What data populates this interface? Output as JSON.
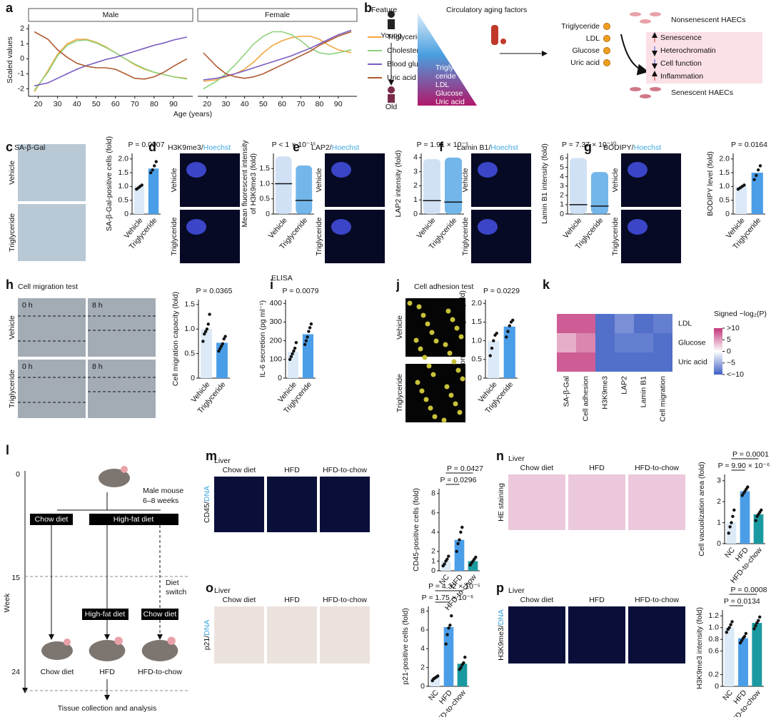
{
  "chart_data": [
    {
      "type": "line",
      "ylabel": "Scaled values",
      "xlabel": "Age (years)",
      "legend_title": "Feature",
      "x": [
        18,
        25,
        30,
        35,
        40,
        45,
        50,
        55,
        60,
        65,
        70,
        75,
        80,
        85,
        90,
        97
      ],
      "xlim": [
        15,
        100
      ],
      "xticks": [
        20,
        30,
        40,
        50,
        60,
        70,
        80,
        90
      ],
      "ylim": [
        -2.5,
        2.3
      ],
      "yticks": [
        -2,
        -1,
        0,
        1,
        2
      ],
      "series": [
        {
          "name": "Triglycerides",
          "color": "#f5a742"
        },
        {
          "name": "Cholesterol",
          "color": "#8fd17a"
        },
        {
          "name": "Blood glucose",
          "color": "#7a5cc0"
        },
        {
          "name": "Uric acid",
          "color": "#b05a30"
        }
      ],
      "facets": [
        {
          "title": "Male",
          "values": [
            [
              -2.2,
              -0.8,
              0.3,
              1.0,
              1.3,
              1.3,
              1.1,
              0.8,
              0.4,
              0.0,
              -0.4,
              -0.7,
              -0.9,
              -1.05,
              -1.2,
              -1.3
            ],
            [
              -2.1,
              -0.9,
              0.2,
              0.9,
              1.2,
              1.25,
              1.05,
              0.75,
              0.4,
              0.0,
              -0.35,
              -0.65,
              -0.9,
              -1.05,
              -1.2,
              -1.35
            ],
            [
              -1.8,
              -1.6,
              -1.3,
              -1.0,
              -0.7,
              -0.45,
              -0.25,
              -0.05,
              0.1,
              0.3,
              0.5,
              0.7,
              0.9,
              1.05,
              1.25,
              1.45
            ],
            [
              1.8,
              1.3,
              0.6,
              0.1,
              -0.3,
              -0.5,
              -0.6,
              -0.6,
              -0.7,
              -1.0,
              -1.3,
              -1.35,
              -1.2,
              -0.9,
              -0.5,
              0.0
            ]
          ]
        },
        {
          "title": "Female",
          "values": [
            [
              -1.5,
              -1.4,
              -1.2,
              -1.0,
              -0.7,
              -0.2,
              0.4,
              0.9,
              1.2,
              1.4,
              1.5,
              1.5,
              1.3,
              0.9,
              0.6,
              0.4
            ],
            [
              -2.0,
              -1.5,
              -1.0,
              -0.4,
              0.3,
              1.0,
              1.5,
              1.8,
              1.8,
              1.6,
              1.2,
              0.7,
              0.4,
              0.3,
              0.4,
              0.6
            ],
            [
              -1.4,
              -1.3,
              -1.15,
              -1.0,
              -0.8,
              -0.6,
              -0.4,
              -0.2,
              0.0,
              0.2,
              0.45,
              0.7,
              1.0,
              1.3,
              1.6,
              1.9
            ],
            [
              0.4,
              -0.5,
              -1.0,
              -1.2,
              -1.3,
              -1.2,
              -1.0,
              -0.7,
              -0.4,
              -0.1,
              0.2,
              0.5,
              0.9,
              1.2,
              1.5,
              1.8
            ]
          ]
        }
      ]
    },
    {
      "type": "bar",
      "ylabel": "SA-β-Gal-positive cells (fold)",
      "p_value": "P = 0.0007",
      "categories": [
        "Vehicle",
        "Triglyceride"
      ],
      "colors": [
        "#dce9f7",
        "#4a9ee8"
      ],
      "values": [
        1.0,
        1.65
      ],
      "points": [
        [
          0.9,
          0.95,
          1.0,
          1.05
        ],
        [
          1.5,
          1.6,
          1.75,
          1.9
        ]
      ],
      "ylim": [
        0,
        2.2
      ],
      "yticks": [
        0,
        0.5,
        {
          "value": 1,
          "label": "1.0"
        },
        1.5,
        {
          "value": 2,
          "label": "2.0"
        }
      ]
    },
    {
      "type": "strip",
      "ylabel": [
        "Mean fluorescent intensity",
        "of H3K9me3 (fold)"
      ],
      "p_value": "P < 1 × 10⁻¹⁵",
      "categories": [
        "Vehicle",
        "Triglyceride"
      ],
      "colors": [
        "#c9dcf3",
        "#5aa9e6"
      ],
      "values": [
        1.0,
        0.45
      ],
      "ranges": [
        [
          0,
          1.9
        ],
        [
          0,
          1.6
        ]
      ],
      "ylim": [
        0,
        2.0
      ],
      "yticks": [
        0,
        0.5,
        {
          "value": 1,
          "label": "1.0"
        },
        1.5
      ]
    },
    {
      "type": "strip",
      "ylabel": "LAP2 intensity (fold)",
      "p_value": "P = 1.91 × 10⁻⁵",
      "categories": [
        "Vehicle",
        "Triglyceride"
      ],
      "colors": [
        "#c9dcf3",
        "#5aa9e6"
      ],
      "values": [
        0.95,
        0.85
      ],
      "ranges": [
        [
          0,
          3.9
        ],
        [
          0,
          4.0
        ]
      ],
      "ylim": [
        0,
        4.3
      ],
      "yticks": [
        0,
        1,
        2,
        3,
        4
      ]
    },
    {
      "type": "strip",
      "ylabel": "Lamin B1 intensity (fold)",
      "p_value": "P = 7.37 × 10⁻¹⁰",
      "categories": [
        "Vehicle",
        "Triglyceride"
      ],
      "colors": [
        "#c9dcf3",
        "#5aa9e6"
      ],
      "values": [
        1.0,
        0.85
      ],
      "ranges": [
        [
          0,
          6.0
        ],
        [
          0,
          4.5
        ]
      ],
      "ylim": [
        0,
        6.5
      ],
      "yticks": [
        0,
        1,
        2,
        3,
        4,
        5,
        6
      ]
    },
    {
      "type": "bar",
      "ylabel": "BODIPY level (fold)",
      "p_value": "P = 0.0164",
      "categories": [
        "Vehicle",
        "Triglyceride"
      ],
      "colors": [
        "#dce9f7",
        "#4a9ee8"
      ],
      "values": [
        1.0,
        1.5
      ],
      "points": [
        [
          0.9,
          0.95,
          1.0,
          1.05
        ],
        [
          1.25,
          1.4,
          1.6,
          1.75
        ]
      ],
      "ylim": [
        0,
        2.2
      ],
      "yticks": [
        0,
        0.5,
        {
          "value": 1,
          "label": "1.0"
        },
        1.5,
        {
          "value": 2,
          "label": "2.0"
        }
      ]
    },
    {
      "type": "bar",
      "ylabel": "Cell migration capacity (fold)",
      "p_value": "P = 0.0365",
      "categories": [
        "Vehicle",
        "Triglyceride"
      ],
      "colors": [
        "#dce9f7",
        "#4a9ee8"
      ],
      "values": [
        1.0,
        0.72
      ],
      "points": [
        [
          0.75,
          0.9,
          0.95,
          1.0,
          1.1,
          1.3
        ],
        [
          0.55,
          0.6,
          0.65,
          0.7,
          0.8,
          0.85
        ]
      ],
      "ylim": [
        0,
        1.6
      ],
      "yticks": [
        0,
        0.5,
        {
          "value": 1,
          "label": "1.0"
        },
        1.5
      ]
    },
    {
      "type": "bar",
      "title": "ELISA",
      "ylabel": "IL-6 secretion (pg ml⁻¹)",
      "p_value": "P = 0.0079",
      "categories": [
        "Vehicle",
        "Triglyceride"
      ],
      "colors": [
        "#dce9f7",
        "#4a9ee8"
      ],
      "values": [
        140,
        235
      ],
      "points": [
        [
          100,
          115,
          130,
          145,
          160,
          190
        ],
        [
          180,
          200,
          220,
          250,
          270,
          290
        ]
      ],
      "ylim": [
        0,
        420
      ],
      "yticks": [
        0,
        100,
        200,
        300,
        400
      ]
    },
    {
      "type": "bar",
      "ylabel": "Adhesion of monocytes (fold)",
      "p_value": "P = 0.0229",
      "categories": [
        "Vehicle",
        "Triglyceride"
      ],
      "colors": [
        "#dce9f7",
        "#4a9ee8"
      ],
      "values": [
        1.0,
        1.38
      ],
      "points": [
        [
          0.6,
          0.8,
          1.0,
          1.15,
          1.2
        ],
        [
          1.1,
          1.25,
          1.4,
          1.5,
          1.55
        ]
      ],
      "ylim": [
        0,
        2.1
      ],
      "yticks": [
        0,
        0.5,
        {
          "value": 1,
          "label": "1.0"
        },
        1.5,
        {
          "value": 2,
          "label": "2.0"
        }
      ]
    },
    {
      "type": "heatmap",
      "rows": [
        "LDL",
        "Glucose",
        "Uric acid"
      ],
      "columns": [
        "SA-β-Gal",
        "Cell adhesion",
        "H3K9me3",
        "LAP2",
        "Lamin B1",
        "Cell migration"
      ],
      "values": [
        [
          8,
          8,
          -9,
          -7,
          -9,
          -8
        ],
        [
          4,
          6,
          -9,
          -8,
          -8,
          -9
        ],
        [
          8,
          8,
          -9,
          -9,
          -9,
          -9
        ]
      ],
      "colors": {
        "low": "#3f5fc4",
        "mid": "#ffffff",
        "high": "#c2357a"
      },
      "colorbar": {
        "title": "Signed −log₂(P)",
        "lim": [
          -10,
          10
        ],
        "ticks": [
          {
            "value": 10,
            "label": ">10"
          },
          5,
          0,
          {
            "value": -5,
            "label": "−5"
          },
          {
            "value": -10,
            "label": "<−10"
          }
        ]
      }
    },
    {
      "type": "bar",
      "ylabel": "CD45-positive cells (fold)",
      "p_values": [
        "P = 0.0296",
        "P = 0.0427"
      ],
      "categories": [
        "NC",
        "HFD",
        "HFD-to-chow"
      ],
      "colors": [
        "#dce9f7",
        "#4a9ee8",
        "#1a9aa0"
      ],
      "values": [
        1.0,
        3.2,
        1.0
      ],
      "points": [
        [
          0.5,
          0.7,
          1.0,
          1.2,
          1.5
        ],
        [
          2.0,
          2.8,
          3.2,
          4.0,
          4.5
        ],
        [
          0.6,
          0.8,
          1.0,
          1.2,
          1.4
        ]
      ],
      "ylim": [
        0,
        8.5
      ],
      "yticks": [
        0,
        1,
        2,
        4,
        6,
        8
      ]
    },
    {
      "type": "bar",
      "ylabel": "Cell vacuolization area (fold)",
      "p_values": [
        "P = 9.90 × 10⁻⁶",
        "P = 0.0001"
      ],
      "categories": [
        "NC",
        "HFD",
        "HFD-to-chow"
      ],
      "colors": [
        "#dce9f7",
        "#4a9ee8",
        "#1a9aa0"
      ],
      "values": [
        1.0,
        2.5,
        1.4
      ],
      "points": [
        [
          0.5,
          0.8,
          1.0,
          1.3,
          1.6
        ],
        [
          2.3,
          2.4,
          2.5,
          2.6,
          2.7
        ],
        [
          1.1,
          1.3,
          1.4,
          1.5,
          1.6
        ]
      ],
      "ylim": [
        0,
        3.3
      ],
      "yticks": [
        0,
        1,
        2,
        3
      ]
    },
    {
      "type": "bar",
      "ylabel": "p21-positive cells (fold)",
      "p_values": [
        "P = 1.75 × 10⁻⁶",
        "P = 4.32 × 10⁻⁵"
      ],
      "categories": [
        "NC",
        "HFD",
        "HFD-to-chow"
      ],
      "colors": [
        "#dce9f7",
        "#4a9ee8",
        "#1a9aa0"
      ],
      "values": [
        1.0,
        6.3,
        2.4
      ],
      "points": [
        [
          0.6,
          0.8,
          0.9,
          1.0,
          1.1
        ],
        [
          4.5,
          5.5,
          6.2,
          6.5,
          7.5
        ],
        [
          1.8,
          2.0,
          2.3,
          2.5,
          3.1
        ]
      ],
      "ylim": [
        0,
        8.5
      ],
      "yticks": [
        0,
        2,
        4,
        6,
        8
      ]
    },
    {
      "type": "bar",
      "ylabel": "H3K9me3 intensity (fold)",
      "p_values": [
        "P = 0.0134",
        "P = 0.0008"
      ],
      "categories": [
        "NC",
        "HFD",
        "HFD-to-chow"
      ],
      "colors": [
        "#dce9f7",
        "#4a9ee8",
        "#1a9aa0"
      ],
      "values": [
        1.0,
        0.82,
        1.08
      ],
      "points": [
        [
          0.92,
          0.97,
          1.0,
          1.05,
          1.1
        ],
        [
          0.74,
          0.78,
          0.82,
          0.85,
          0.9
        ],
        [
          0.98,
          1.03,
          1.08,
          1.12,
          1.18
        ]
      ],
      "ylim": [
        0,
        1.3
      ],
      "yticks": [
        0,
        0.2,
        0.6,
        0.8,
        {
          "value": 1,
          "label": "1.0"
        },
        1.2
      ]
    }
  ],
  "figure": {
    "panel_labels": [
      "a",
      "b",
      "c",
      "d",
      "e",
      "f",
      "g",
      "h",
      "i",
      "j",
      "k",
      "l",
      "m",
      "n",
      "o",
      "p"
    ],
    "b": {
      "young": "Young",
      "old": "Old",
      "title": "Circulatory aging factors",
      "factors": [
        "Triglyceride",
        "LDL",
        "Glucose",
        "Uric acid"
      ],
      "triangle_text": [
        "Trigly-",
        "ceride",
        "LDL",
        "Glucose",
        "Uric acid"
      ],
      "cells_top": "Nonsenescent HAECs",
      "changes": [
        "Senescence",
        "Heterochromatin",
        "Cell function",
        "Inflammation"
      ],
      "cells_bottom": "Senescent HAECs"
    },
    "l": {
      "mouse": [
        "Male mouse",
        "6–8 weeks"
      ],
      "weeks": [
        "0",
        "15",
        "24"
      ],
      "axis_label": "Week",
      "phase1": [
        "Chow diet",
        "High-fat diet"
      ],
      "phase2": [
        "High-fat diet",
        "Chow diet"
      ],
      "switch": [
        "Diet",
        "switch"
      ],
      "groups": [
        "Chow diet",
        "HFD",
        "HFD-to-chow"
      ],
      "end": "Tissue collection and analysis"
    },
    "images": {
      "c": {
        "title": "SA-β-Gal",
        "rows": [
          "Vehicle",
          "Triglyceride"
        ]
      },
      "d": {
        "title": "H3K9me3/",
        "stain": "Hoechst",
        "rows": [
          "Vehicle",
          "Triglyceride"
        ]
      },
      "e": {
        "title": "LAP2/",
        "stain": "Hoechst",
        "rows": [
          "Vehicle",
          "Triglyceride"
        ]
      },
      "f": {
        "title": "Lamin B1/",
        "stain": "Hoechst",
        "rows": [
          "Vehicle",
          "Triglyceride"
        ]
      },
      "g": {
        "title": "BODIPY/",
        "stain": "Hoechst",
        "rows": [
          "Vehicle",
          "Triglyceride"
        ]
      },
      "h": {
        "title": "Cell migration test",
        "rows": [
          "Vehicle",
          "Triglyceride"
        ],
        "times": [
          "0 h",
          "8 h",
          "0 h",
          "8 h"
        ]
      },
      "j": {
        "title": "Cell adhesion test",
        "rows": [
          "Vehicle",
          "Triglyceride"
        ]
      },
      "m": {
        "tissue": "Liver",
        "columns": [
          "Chow diet",
          "HFD",
          "HFD-to-chow"
        ],
        "stain": "CD45/",
        "counter": "DNA"
      },
      "n": {
        "tissue": "Liver",
        "columns": [
          "Chow diet",
          "HFD",
          "HFD-to-chow"
        ],
        "stain": "HE staining"
      },
      "o": {
        "tissue": "Liver",
        "columns": [
          "Chow diet",
          "HFD",
          "HFD-to-chow"
        ],
        "stain": "p21/",
        "counter": "DNA"
      },
      "p": {
        "tissue": "Liver",
        "columns": [
          "Chow diet",
          "HFD",
          "HFD-to-chow"
        ],
        "stain": "H3K9me3/",
        "counter": "DNA"
      }
    }
  }
}
